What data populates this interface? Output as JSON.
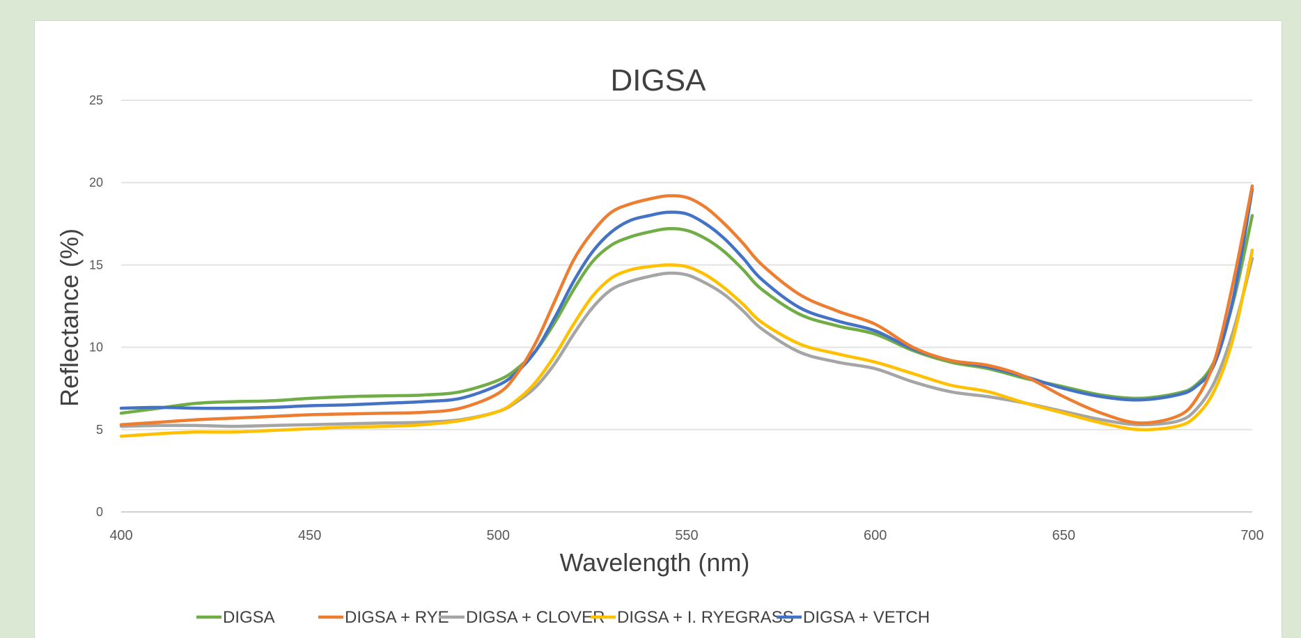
{
  "chart_data": {
    "type": "line",
    "title": "DIGSA",
    "xlabel": "Wavelength (nm)",
    "ylabel": "Reflectance (%)",
    "xlim": [
      400,
      700
    ],
    "ylim": [
      0,
      25
    ],
    "x_ticks": [
      "400",
      "450",
      "500",
      "550",
      "600",
      "650",
      "700"
    ],
    "y_ticks": [
      "0",
      "5",
      "10",
      "15",
      "20",
      "25"
    ],
    "grid": "horizontal",
    "legend_position": "bottom",
    "x": [
      400,
      410,
      420,
      430,
      440,
      450,
      460,
      470,
      480,
      490,
      500,
      505,
      510,
      515,
      520,
      525,
      530,
      535,
      540,
      545,
      550,
      555,
      560,
      565,
      570,
      580,
      590,
      600,
      610,
      620,
      630,
      640,
      650,
      660,
      670,
      680,
      685,
      690,
      695,
      700
    ],
    "series": [
      {
        "name": "DIGSA",
        "color": "#70ad47",
        "values": [
          6.0,
          6.3,
          6.6,
          6.7,
          6.75,
          6.9,
          7.0,
          7.05,
          7.1,
          7.3,
          8.0,
          8.7,
          9.8,
          11.5,
          13.5,
          15.2,
          16.2,
          16.7,
          17.0,
          17.2,
          17.1,
          16.6,
          15.8,
          14.7,
          13.5,
          12.0,
          11.3,
          10.8,
          9.8,
          9.1,
          8.7,
          8.1,
          7.6,
          7.1,
          6.9,
          7.2,
          7.7,
          9.2,
          12.8,
          18.0
        ]
      },
      {
        "name": "DIGSA + RYE",
        "color": "#ed7d31",
        "values": [
          5.3,
          5.45,
          5.6,
          5.7,
          5.8,
          5.9,
          5.95,
          6.0,
          6.05,
          6.3,
          7.2,
          8.4,
          10.3,
          12.8,
          15.3,
          17.0,
          18.2,
          18.7,
          19.0,
          19.2,
          19.1,
          18.5,
          17.5,
          16.3,
          15.0,
          13.2,
          12.2,
          11.4,
          10.0,
          9.2,
          8.9,
          8.2,
          7.0,
          6.0,
          5.4,
          5.8,
          6.8,
          9.2,
          14.0,
          19.8
        ]
      },
      {
        "name": "DIGSA + CLOVER",
        "color": "#a5a5a5",
        "values": [
          5.2,
          5.25,
          5.25,
          5.2,
          5.25,
          5.3,
          5.35,
          5.4,
          5.45,
          5.6,
          6.1,
          6.7,
          7.6,
          9.0,
          10.8,
          12.4,
          13.5,
          14.0,
          14.3,
          14.5,
          14.4,
          13.9,
          13.2,
          12.2,
          11.1,
          9.7,
          9.1,
          8.7,
          7.9,
          7.3,
          7.0,
          6.6,
          6.1,
          5.6,
          5.3,
          5.5,
          6.2,
          7.9,
          11.0,
          15.4
        ]
      },
      {
        "name": "DIGSA + I. RYEGRASS",
        "color": "#ffc000",
        "values": [
          4.6,
          4.75,
          4.85,
          4.85,
          4.95,
          5.05,
          5.15,
          5.2,
          5.3,
          5.55,
          6.1,
          6.8,
          7.9,
          9.5,
          11.4,
          13.1,
          14.2,
          14.7,
          14.9,
          15.0,
          14.9,
          14.4,
          13.6,
          12.6,
          11.5,
          10.2,
          9.6,
          9.1,
          8.4,
          7.7,
          7.3,
          6.6,
          6.0,
          5.4,
          5.0,
          5.2,
          5.8,
          7.4,
          10.6,
          15.9
        ]
      },
      {
        "name": "DIGSA + VETCH",
        "color": "#4472c4",
        "values": [
          6.3,
          6.35,
          6.3,
          6.3,
          6.35,
          6.45,
          6.5,
          6.6,
          6.7,
          6.9,
          7.7,
          8.5,
          9.8,
          11.8,
          14.0,
          15.8,
          17.0,
          17.7,
          18.0,
          18.2,
          18.1,
          17.5,
          16.6,
          15.4,
          14.1,
          12.4,
          11.6,
          11.0,
          9.9,
          9.2,
          8.8,
          8.2,
          7.5,
          7.0,
          6.8,
          7.1,
          7.6,
          9.0,
          13.0,
          19.6
        ]
      }
    ]
  }
}
